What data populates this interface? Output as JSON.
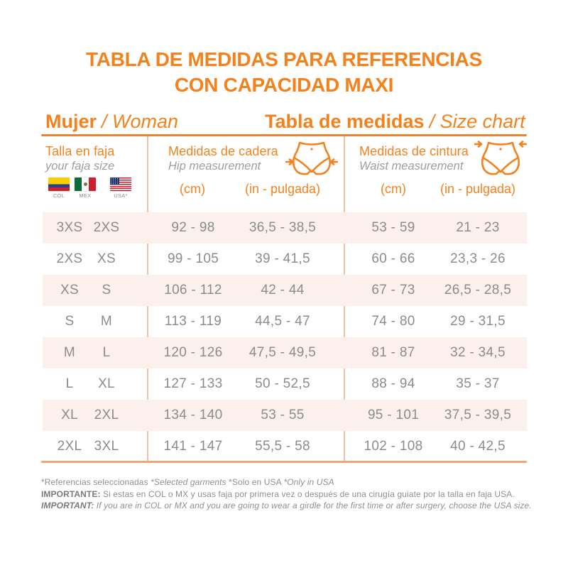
{
  "title": {
    "line1": "TABLA DE MEDIDAS PARA REFERENCIAS",
    "line2": "CON CAPACIDAD MAXI"
  },
  "section_headers": {
    "left": {
      "main": "Mujer",
      "sub": "/ Woman"
    },
    "right": {
      "main": "Tabla de medidas",
      "sub": "/ Size chart"
    }
  },
  "columns": {
    "size": {
      "title": "Talla en faja",
      "subtitle": "your faja size"
    },
    "hip": {
      "title": "Medidas de cadera",
      "subtitle": "Hip measurement",
      "cm_label": "(cm)",
      "in_label": "(in - pulgada)"
    },
    "waist": {
      "title": "Medidas de cintura",
      "subtitle": "Waist measurement",
      "cm_label": "(cm)",
      "in_label": "(in - pulgada)"
    }
  },
  "flags": [
    {
      "country": "colombia",
      "label": "COL"
    },
    {
      "country": "mexico",
      "label": "MEX"
    },
    {
      "country": "usa",
      "label": "USA*"
    }
  ],
  "table": {
    "rows": [
      {
        "size_col_mx": "3XS",
        "size_usa": "2XS",
        "hip_cm": "92 - 98",
        "hip_in": "36,5 - 38,5",
        "waist_cm": "53 - 59",
        "waist_in": "21 - 23"
      },
      {
        "size_col_mx": "2XS",
        "size_usa": "XS",
        "hip_cm": "99 - 105",
        "hip_in": "39 - 41,5",
        "waist_cm": "60 - 66",
        "waist_in": "23,3 - 26"
      },
      {
        "size_col_mx": "XS",
        "size_usa": "S",
        "hip_cm": "106 - 112",
        "hip_in": "42 - 44",
        "waist_cm": "67 - 73",
        "waist_in": "26,5 - 28,5"
      },
      {
        "size_col_mx": "S",
        "size_usa": "M",
        "hip_cm": "113 - 119",
        "hip_in": "44,5 - 47",
        "waist_cm": "74 - 80",
        "waist_in": "29 - 31,5"
      },
      {
        "size_col_mx": "M",
        "size_usa": "L",
        "hip_cm": "120 - 126",
        "hip_in": "47,5 - 49,5",
        "waist_cm": "81 - 87",
        "waist_in": "32 - 34,5"
      },
      {
        "size_col_mx": "L",
        "size_usa": "XL",
        "hip_cm": "127 - 133",
        "hip_in": "50 - 52,5",
        "waist_cm": "88 - 94",
        "waist_in": "35 - 37"
      },
      {
        "size_col_mx": "XL",
        "size_usa": "2XL",
        "hip_cm": "134 - 140",
        "hip_in": "53 - 55",
        "waist_cm": "95 - 101",
        "waist_in": "37,5 - 39,5"
      },
      {
        "size_col_mx": "2XL",
        "size_usa": "3XL",
        "hip_cm": "141 - 147",
        "hip_in": "55,5 - 58",
        "waist_cm": "102 - 108",
        "waist_in": "40 - 42,5"
      }
    ]
  },
  "footer": {
    "note_segments": [
      {
        "text": "*Referencias seleccionadas ",
        "italic": false
      },
      {
        "text": "*Selected garments ",
        "italic": true
      },
      {
        "text": "*Solo en USA ",
        "italic": false
      },
      {
        "text": "*Only in USA",
        "italic": true
      }
    ],
    "important_es_label": "IMPORTANTE:",
    "important_es": " Si estas en COL o MX y usas faja por primera vez o después de una cirugía guiate por la talla en faja USA.",
    "important_en_label": "IMPORTANT:",
    "important_en": " If you are in COL or MX and you are going to wear a girdle for the first time or after surgery, choose the USA size."
  },
  "colors": {
    "accent_orange": "#f5811d",
    "row_highlight": "#fcf0ed",
    "divider": "#f3c2a5",
    "text_gray": "#8c8c8c"
  }
}
